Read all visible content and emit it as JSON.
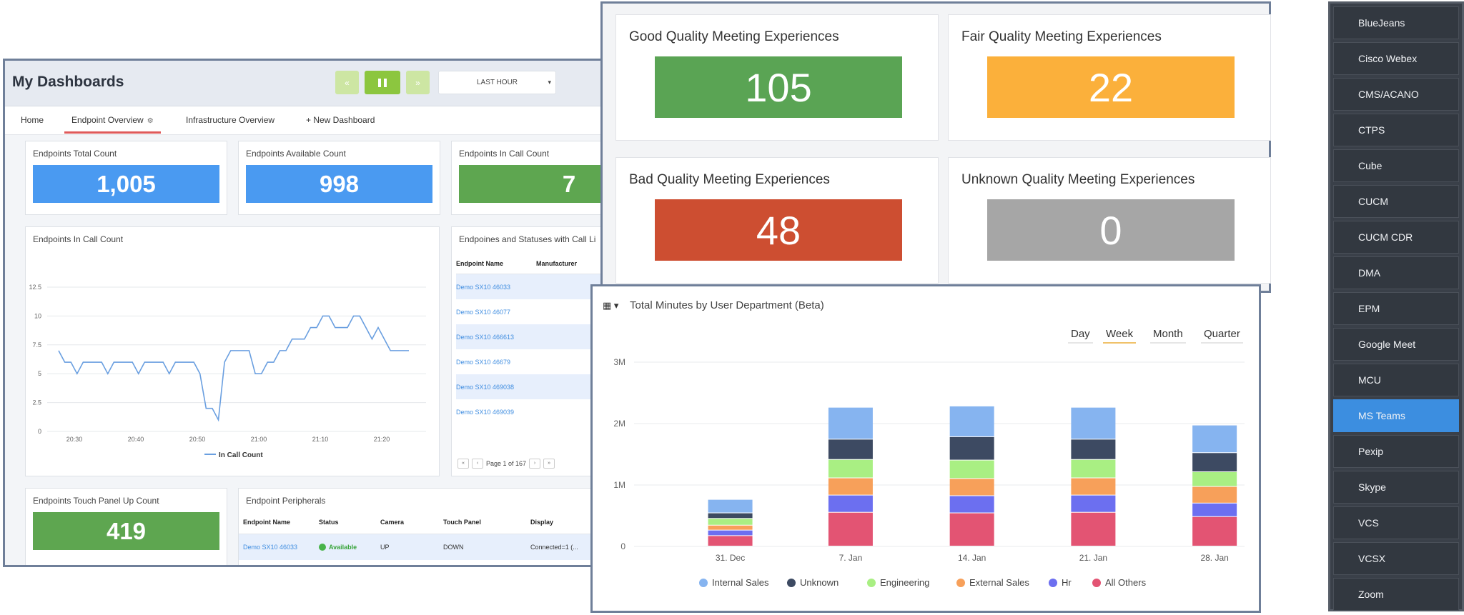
{
  "dashboard": {
    "title": "My Dashboards",
    "time_range": "LAST HOUR",
    "tabs": [
      {
        "label": "Home"
      },
      {
        "label": "Endpoint Overview",
        "active": true
      },
      {
        "label": "Infrastructure Overview"
      },
      {
        "label": "+ New Dashboard"
      }
    ],
    "kpis": {
      "total": {
        "title": "Endpoints Total Count",
        "value": "1,005"
      },
      "available": {
        "title": "Endpoints Available Count",
        "value": "998"
      },
      "in_call": {
        "title": "Endpoints In Call Count",
        "value": "7"
      },
      "touch_panel": {
        "title": "Endpoints Touch Panel Up Count",
        "value": "419"
      }
    },
    "in_call_chart": {
      "title": "Endpoints In Call Count",
      "legend": "In Call Count"
    },
    "status_table": {
      "title": "Endpoines and Statuses with Call Li",
      "headers": [
        "Endpoint Name",
        "Manufacturer"
      ],
      "rows": [
        "Demo SX10 46033",
        "Demo SX10 46077",
        "Demo SX10 466613",
        "Demo SX10 46679",
        "Demo SX10 469038",
        "Demo SX10 469039"
      ],
      "pager": "Page 1 of 167"
    },
    "peripherals": {
      "title": "Endpoint Peripherals",
      "headers": [
        "Endpoint Name",
        "Status",
        "Camera",
        "Touch Panel",
        "Display"
      ],
      "row": {
        "name": "Demo SX10 46033",
        "status": "Available",
        "camera": "UP",
        "touch": "DOWN",
        "display": "Connected=1 (..."
      }
    }
  },
  "quality": {
    "good": {
      "title": "Good Quality Meeting Experiences",
      "value": "105",
      "color": "#5aa454"
    },
    "fair": {
      "title": "Fair Quality Meeting Experiences",
      "value": "22",
      "color": "#fbb03b"
    },
    "bad": {
      "title": "Bad Quality Meeting Experiences",
      "value": "48",
      "color": "#cd4e31"
    },
    "unknown": {
      "title": "Unknown Quality Meeting Experiences",
      "value": "0",
      "color": "#a6a6a6"
    }
  },
  "minutes_panel": {
    "title": "Total Minutes by User Department (Beta)",
    "periods": [
      "Day",
      "Week",
      "Month",
      "Quarter"
    ],
    "selected_period": "Week"
  },
  "sidebar": {
    "items": [
      "BlueJeans",
      "Cisco Webex",
      "CMS/ACANO",
      "CTPS",
      "Cube",
      "CUCM",
      "CUCM CDR",
      "DMA",
      "EPM",
      "Google Meet",
      "MCU",
      "MS Teams",
      "Pexip",
      "Skype",
      "VCS",
      "VCSX",
      "Zoom"
    ],
    "active": "MS Teams"
  },
  "chart_data": [
    {
      "type": "line",
      "title": "Endpoints In Call Count",
      "x_ticks": [
        "20:30",
        "20:40",
        "20:50",
        "21:00",
        "21:10",
        "21:20"
      ],
      "y_ticks": [
        0,
        2.5,
        5,
        7.5,
        10,
        12.5
      ],
      "ylim": [
        0,
        12.5
      ],
      "series": [
        {
          "name": "In Call Count",
          "color": "#6a9fe0",
          "values": [
            7,
            6,
            6,
            5,
            6,
            6,
            6,
            6,
            5,
            6,
            6,
            6,
            6,
            5,
            6,
            6,
            6,
            6,
            5,
            6,
            6,
            6,
            6,
            5,
            2,
            2,
            1,
            6,
            7,
            7,
            7,
            7,
            5,
            5,
            6,
            6,
            7,
            7,
            8,
            8,
            8,
            9,
            9,
            10,
            10,
            9,
            9,
            9,
            10,
            10,
            9,
            8,
            9,
            8,
            7,
            7,
            7,
            7
          ]
        }
      ],
      "legend": "bottom"
    },
    {
      "type": "bar",
      "stacked": true,
      "title": "Total Minutes by User Department (Beta)",
      "categories": [
        "31. Dec",
        "7. Jan",
        "14. Jan",
        "21. Jan",
        "28. Jan"
      ],
      "y_ticks": [
        "0",
        "1M",
        "2M",
        "3M"
      ],
      "ylim": [
        0,
        3000000
      ],
      "series": [
        {
          "name": "All Others",
          "color": "#e35473",
          "values": [
            170000,
            550000,
            540000,
            550000,
            480000
          ]
        },
        {
          "name": "Hr",
          "color": "#6c6ff0",
          "values": [
            90000,
            280000,
            280000,
            280000,
            220000
          ]
        },
        {
          "name": "External Sales",
          "color": "#f7a05a",
          "values": [
            80000,
            280000,
            280000,
            280000,
            270000
          ]
        },
        {
          "name": "Engineering",
          "color": "#a9ef83",
          "values": [
            110000,
            300000,
            300000,
            300000,
            240000
          ]
        },
        {
          "name": "Unknown",
          "color": "#3d4a62",
          "values": [
            90000,
            330000,
            380000,
            330000,
            310000
          ]
        },
        {
          "name": "Internal Sales",
          "color": "#86b4f0",
          "values": [
            220000,
            520000,
            500000,
            520000,
            450000
          ]
        }
      ],
      "legend": "bottom"
    }
  ]
}
